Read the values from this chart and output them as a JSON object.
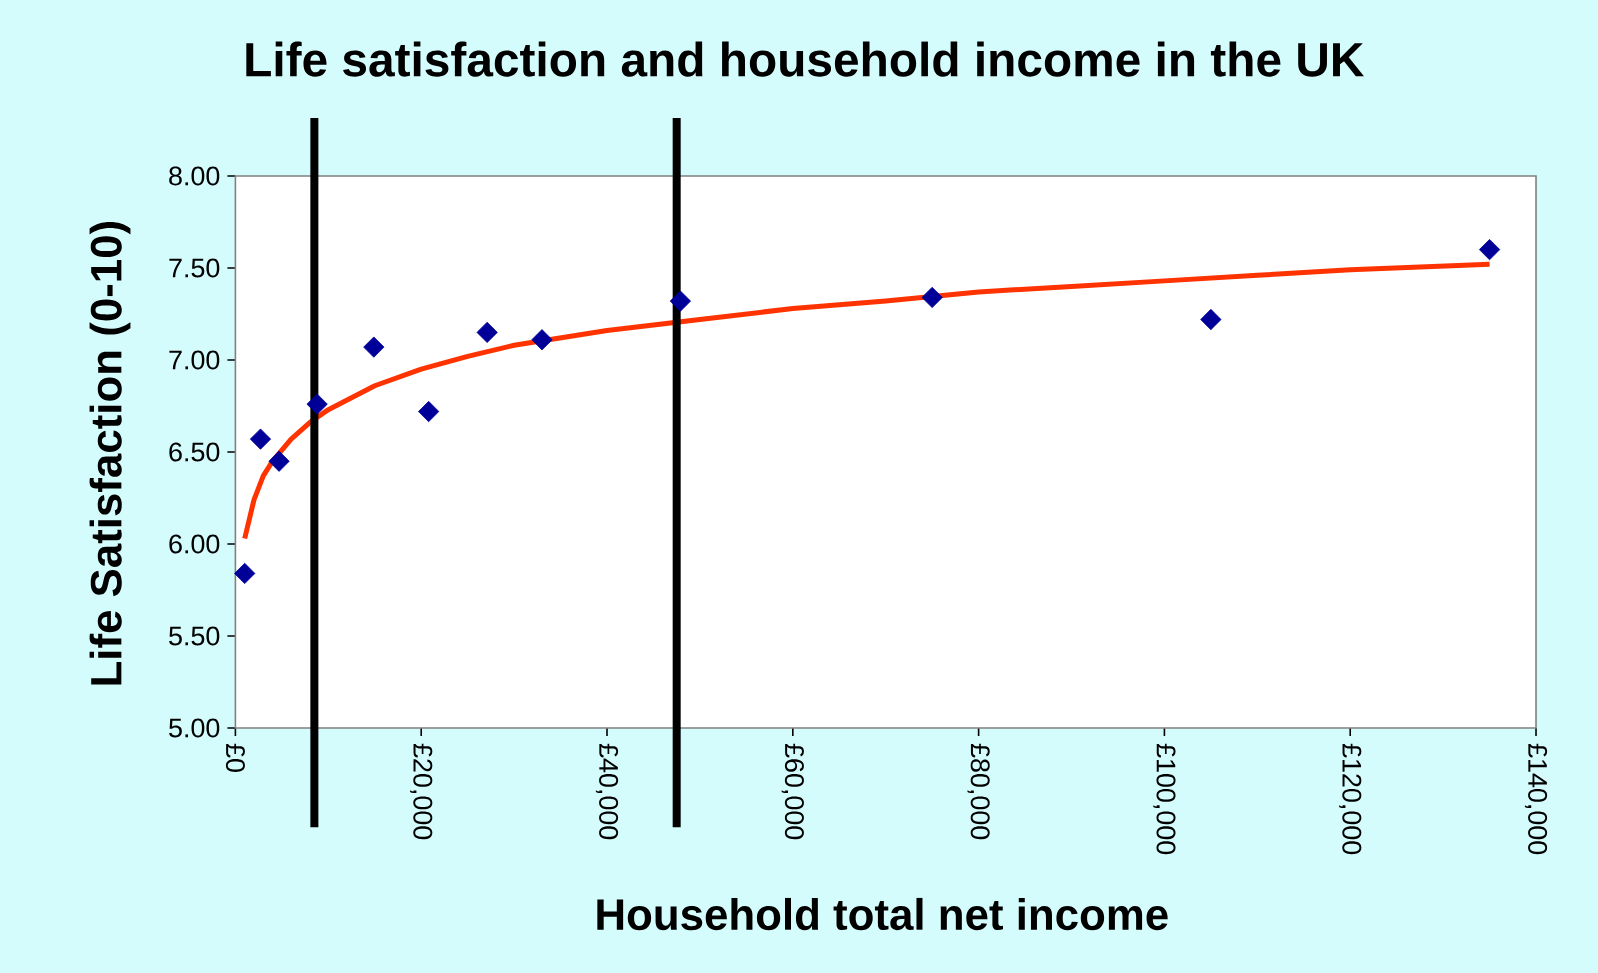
{
  "chart_data": {
    "type": "scatter",
    "title": "Life satisfaction and household income in the UK",
    "xlabel": "Household total net income",
    "ylabel": "Life Satisfaction (0-10)",
    "series": [
      {
        "color": "#000099",
        "marker": "diamond",
        "x": [
          1000,
          2700,
          4700,
          8800,
          14900,
          20800,
          27100,
          33000,
          47900,
          75000,
          105000,
          135000
        ],
        "values": [
          5.84,
          6.57,
          6.45,
          6.76,
          7.07,
          6.72,
          7.15,
          7.11,
          7.32,
          7.34,
          7.22,
          7.6
        ]
      },
      {
        "type": "line",
        "color": "#ff3300",
        "marker": "none",
        "line_style": "solid",
        "x": [
          1000,
          2000,
          3000,
          4000,
          6000,
          8000,
          10000,
          15000,
          20000,
          25000,
          30000,
          40000,
          50000,
          60000,
          70000,
          80000,
          90000,
          100000,
          110000,
          120000,
          135000
        ],
        "values": [
          6.03,
          6.24,
          6.37,
          6.45,
          6.57,
          6.66,
          6.73,
          6.86,
          6.95,
          7.02,
          7.08,
          7.16,
          7.22,
          7.28,
          7.32,
          7.37,
          7.4,
          7.43,
          7.46,
          7.49,
          7.52
        ]
      }
    ],
    "xlim": [
      0,
      140000
    ],
    "ylim": [
      5,
      8
    ],
    "xticks": [
      {
        "value": 0,
        "label": "£0"
      },
      {
        "value": 20000,
        "label": "£20,000"
      },
      {
        "value": 40000,
        "label": "£40,000"
      },
      {
        "value": 60000,
        "label": "£60,000"
      },
      {
        "value": 80000,
        "label": "£80,000"
      },
      {
        "value": 100000,
        "label": "£100,000"
      },
      {
        "value": 120000,
        "label": "£120,000"
      },
      {
        "value": 140000,
        "label": "£140,000"
      }
    ],
    "yticks": [
      {
        "value": 5,
        "label": "5.00"
      },
      {
        "value": 5.5,
        "label": "5.50"
      },
      {
        "value": 6,
        "label": "6.00"
      },
      {
        "value": 6.5,
        "label": "6.50"
      },
      {
        "value": 7,
        "label": "7.00"
      },
      {
        "value": 7.5,
        "label": "7.50"
      },
      {
        "value": 8,
        "label": "8.00"
      }
    ],
    "ref_lines": [
      {
        "axis": "x",
        "value": 8500,
        "color": "#000000"
      },
      {
        "axis": "x",
        "value": 47500,
        "color": "#000000"
      }
    ],
    "grid": false
  }
}
